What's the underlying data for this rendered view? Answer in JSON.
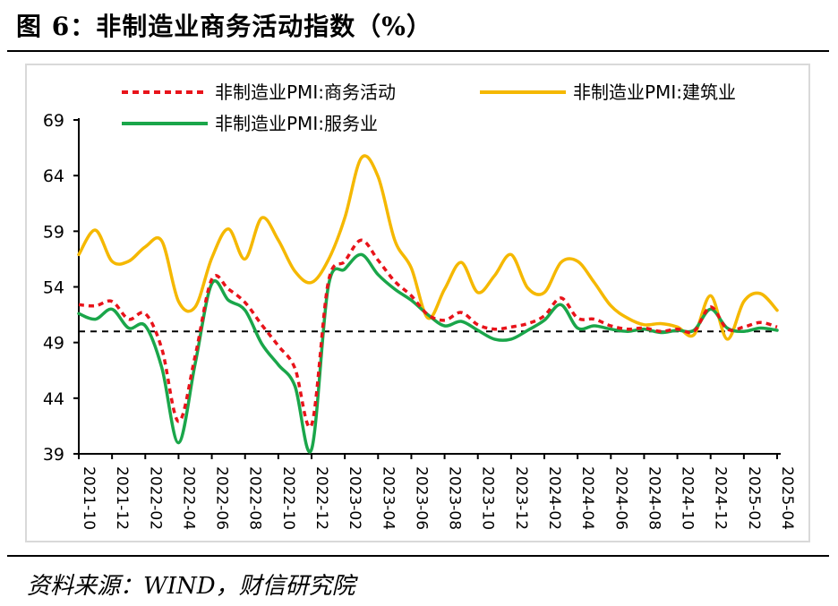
{
  "title": "图 6：非制造业商务活动指数（%）",
  "source": "资料来源：WIND，财信研究院",
  "chart_data": {
    "type": "line",
    "y_ticks": [
      "39",
      "44",
      "49",
      "54",
      "59",
      "64",
      "69"
    ],
    "ylim": [
      39,
      69
    ],
    "x_tick_labels": [
      "2021-10",
      "2021-12",
      "2022-02",
      "2022-04",
      "2022-06",
      "2022-08",
      "2022-10",
      "2022-12",
      "2023-02",
      "2023-04",
      "2023-06",
      "2023-08",
      "2023-10",
      "2023-12",
      "2024-02",
      "2024-04",
      "2024-06",
      "2024-08",
      "2024-10",
      "2024-12",
      "2025-02",
      "2025-04"
    ],
    "x": [
      "2021-10",
      "2021-11",
      "2021-12",
      "2022-01",
      "2022-02",
      "2022-03",
      "2022-04",
      "2022-05",
      "2022-06",
      "2022-07",
      "2022-08",
      "2022-09",
      "2022-10",
      "2022-11",
      "2022-12",
      "2023-01",
      "2023-02",
      "2023-03",
      "2023-04",
      "2023-05",
      "2023-06",
      "2023-07",
      "2023-08",
      "2023-09",
      "2023-10",
      "2023-11",
      "2023-12",
      "2024-01",
      "2024-02",
      "2024-03",
      "2024-04",
      "2024-05",
      "2024-06",
      "2024-07",
      "2024-08",
      "2024-09",
      "2024-10",
      "2024-11",
      "2024-12",
      "2025-01",
      "2025-02",
      "2025-03",
      "2025-04"
    ],
    "series": [
      {
        "name": "非制造业PMI:商务活动",
        "color": "#e8131a",
        "dash": true,
        "values": [
          52.4,
          52.3,
          52.7,
          51.1,
          51.6,
          48.4,
          41.9,
          47.8,
          54.7,
          53.8,
          52.6,
          50.6,
          48.7,
          46.7,
          41.6,
          54.4,
          56.3,
          58.2,
          56.4,
          54.5,
          53.2,
          51.5,
          51.0,
          51.7,
          50.6,
          50.2,
          50.4,
          50.7,
          51.4,
          53.0,
          51.2,
          51.1,
          50.5,
          50.2,
          50.3,
          50.0,
          50.2,
          50.0,
          52.2,
          50.2,
          50.4,
          50.8,
          50.4
        ]
      },
      {
        "name": "非制造业PMI:建筑业",
        "color": "#f5b800",
        "dash": false,
        "values": [
          56.9,
          59.1,
          56.3,
          56.3,
          57.6,
          58.1,
          52.7,
          52.2,
          56.6,
          59.2,
          56.5,
          60.2,
          58.2,
          55.4,
          54.4,
          56.4,
          60.2,
          65.6,
          63.9,
          58.2,
          55.7,
          51.2,
          53.8,
          56.2,
          53.5,
          55.0,
          56.9,
          53.9,
          53.5,
          56.2,
          56.3,
          54.4,
          52.3,
          51.2,
          50.6,
          50.7,
          50.4,
          49.7,
          53.2,
          49.3,
          52.7,
          53.4,
          51.9
        ]
      },
      {
        "name": "非制造业PMI:服务业",
        "color": "#1aa64a",
        "dash": false,
        "values": [
          51.6,
          51.1,
          52.0,
          50.3,
          50.5,
          46.7,
          40.0,
          47.1,
          54.3,
          52.8,
          51.9,
          48.9,
          47.0,
          45.1,
          39.4,
          54.0,
          55.6,
          56.9,
          55.1,
          53.8,
          52.8,
          51.5,
          50.5,
          50.9,
          50.1,
          49.3,
          49.3,
          50.1,
          51.0,
          52.4,
          50.3,
          50.5,
          50.2,
          50.0,
          50.2,
          49.9,
          50.1,
          50.1,
          52.0,
          50.3,
          50.0,
          50.3,
          50.1
        ]
      }
    ],
    "reference_line": {
      "y": 50,
      "color": "#000000",
      "dash": true
    },
    "legend_position": "top",
    "grid": false
  }
}
